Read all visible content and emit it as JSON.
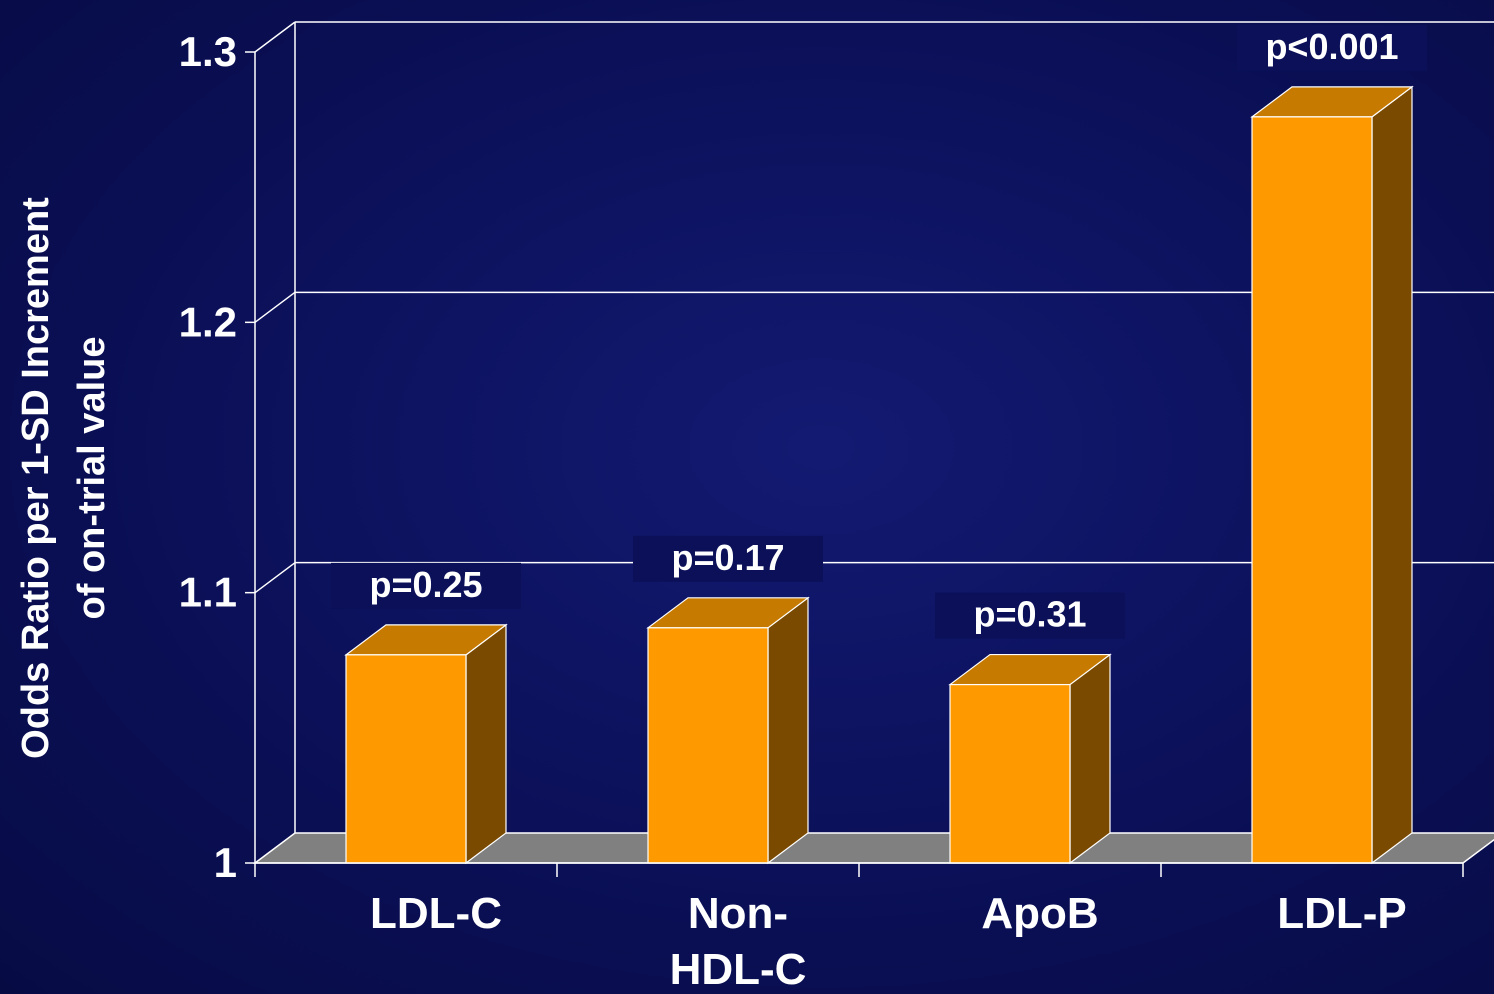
{
  "chart_data": {
    "type": "bar",
    "categories": [
      "LDL-C",
      "Non-HDL-C",
      "ApoB",
      "LDL-P"
    ],
    "category_lines": [
      [
        "LDL-C"
      ],
      [
        "Non-",
        "HDL-C"
      ],
      [
        "ApoB"
      ],
      [
        "LDL-P"
      ]
    ],
    "values": [
      1.077,
      1.087,
      1.066,
      1.276
    ],
    "p_values": [
      "p=0.25",
      "p=0.17",
      "p=0.31",
      "p<0.001"
    ],
    "ylabel_lines": [
      "Odds Ratio per 1-SD Increment",
      "of on-trial value"
    ],
    "ylim": [
      1.0,
      1.3
    ],
    "yticks": [
      1.0,
      1.1,
      1.2,
      1.3
    ],
    "ytick_labels": [
      "1",
      "1.1",
      "1.2",
      "1.3"
    ],
    "grid": true,
    "legend": "none",
    "colors": {
      "bar_front": "#ff9900",
      "bar_top": "#c77a00",
      "bar_side": "#7a4a00",
      "floor": "#808080",
      "text": "#ffffff",
      "gridline": "#ffffff"
    }
  }
}
